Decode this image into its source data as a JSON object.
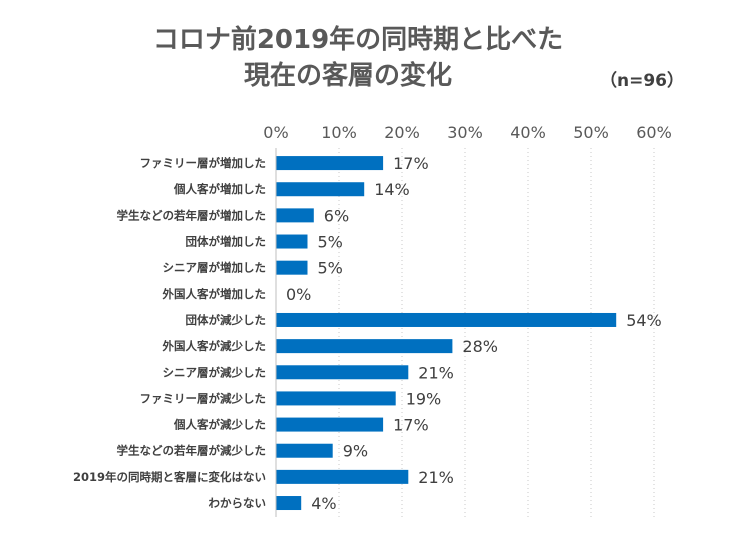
{
  "chart_data": {
    "type": "bar",
    "orientation": "horizontal",
    "title_line1": "コロナ前2019年の同時期と比べた",
    "title_line2": "現在の客層の変化",
    "sample_note": "（n=96）",
    "xlim": [
      0,
      60
    ],
    "x_ticks": [
      "0%",
      "10%",
      "20%",
      "30%",
      "40%",
      "50%",
      "60%"
    ],
    "grid": "vertical dotted",
    "bar_color": "#0070C0",
    "categories": [
      "ファミリー層が増加した",
      "個人客が増加した",
      "学生などの若年層が増加した",
      "団体が増加した",
      "シニア層が増加した",
      "外国人客が増加した",
      "団体が減少した",
      "外国人客が減少した",
      "シニア層が減少した",
      "ファミリー層が減少した",
      "個人客が減少した",
      "学生などの若年層が減少した",
      "2019年の同時期と客層に変化はない",
      "わからない"
    ],
    "values": [
      17,
      14,
      6,
      5,
      5,
      0,
      54,
      28,
      21,
      19,
      17,
      9,
      21,
      4
    ],
    "value_labels": [
      "17%",
      "14%",
      "6%",
      "5%",
      "5%",
      "0%",
      "54%",
      "28%",
      "21%",
      "19%",
      "17%",
      "9%",
      "21%",
      "4%"
    ]
  }
}
